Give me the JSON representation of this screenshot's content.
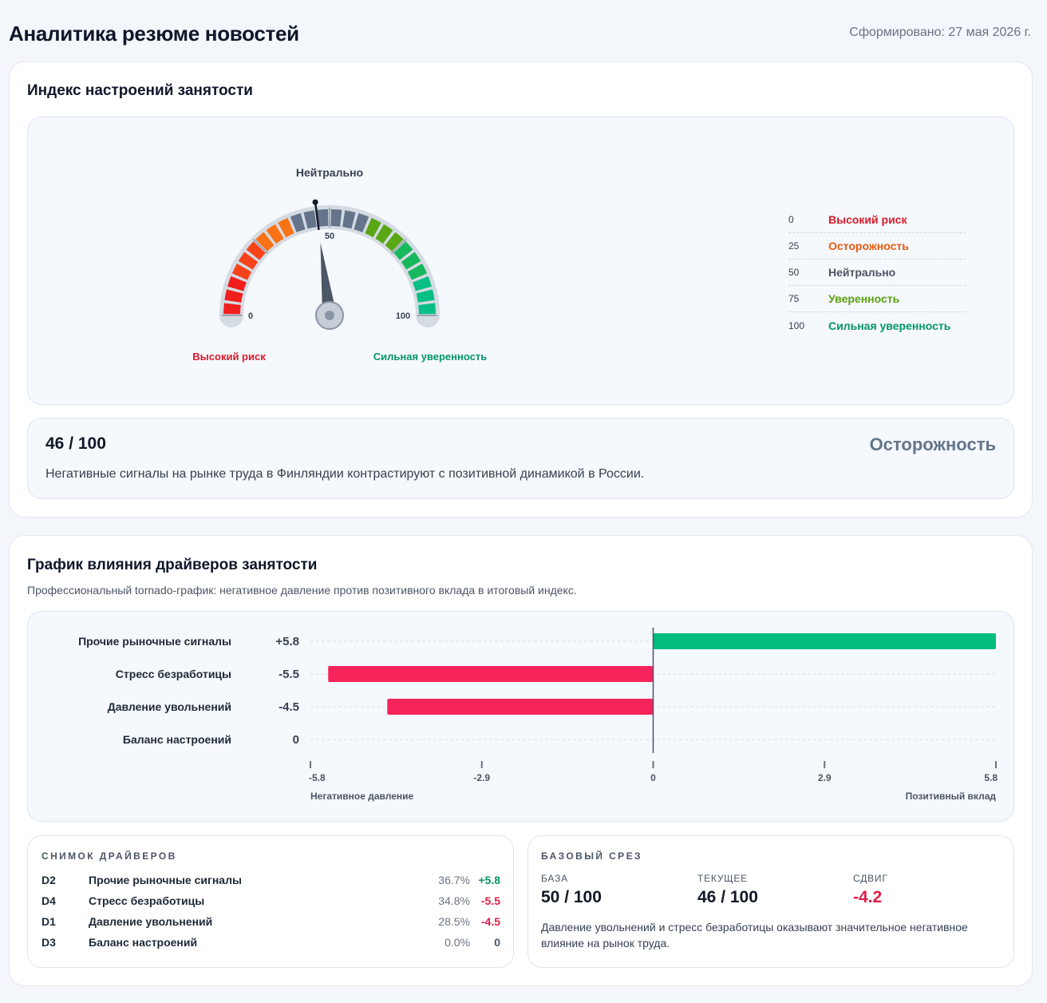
{
  "header": {
    "title": "Аналитика резюме новостей",
    "generated": "Сформировано: 27 мая 2026 г."
  },
  "sentiment": {
    "title": "Индекс настроений занятости",
    "gauge": {
      "value": 46,
      "min": 0,
      "max": 100,
      "top_label": "Нейтрально",
      "tick_0": "0",
      "tick_50": "50",
      "tick_100": "100",
      "left_label": "Высокий риск",
      "right_label": "Сильная уверенность"
    },
    "legend": [
      {
        "value": "0",
        "label": "Высокий риск",
        "color": "#dc1a2b"
      },
      {
        "value": "25",
        "label": "Осторожность",
        "color": "#ea580c"
      },
      {
        "value": "50",
        "label": "Нейтрально",
        "color": "#4b5563"
      },
      {
        "value": "75",
        "label": "Уверенность",
        "color": "#5a9f10"
      },
      {
        "value": "100",
        "label": "Сильная уверенность",
        "color": "#059669"
      }
    ],
    "summary": {
      "score": "46 / 100",
      "state": "Осторожность",
      "text": "Негативные сигналы на рынке труда в Финляндии контрастируют с позитивной динамикой в России."
    }
  },
  "drivers": {
    "title": "График влияния драйверов занятости",
    "subtitle": "Профессиональный tornado-график: негативное давление против позитивного вклада в итоговый индекс.",
    "chart_data": {
      "type": "bar",
      "orientation": "horizontal",
      "categories": [
        "Прочие рыночные сигналы",
        "Стресс безработицы",
        "Давление увольнений",
        "Баланс настроений"
      ],
      "values": [
        5.8,
        -5.5,
        -4.5,
        0
      ],
      "value_labels": [
        "+5.8",
        "-5.5",
        "-4.5",
        "0"
      ],
      "xlim": [
        -5.8,
        5.8
      ],
      "xticks": [
        -5.8,
        -2.9,
        0,
        2.9,
        5.8
      ],
      "xtick_labels": [
        "-5.8",
        "-2.9",
        "0",
        "2.9",
        "5.8"
      ],
      "left_caption": "Негативное давление",
      "right_caption": "Позитивный вклад",
      "positive_color": "#02bd7d",
      "negative_color": "#f7245c",
      "grid": true
    },
    "snapshot": {
      "title": "СНИМОК ДРАЙВЕРОВ",
      "rows": [
        {
          "code": "D2",
          "label": "Прочие рыночные сигналы",
          "pct": "36.7%",
          "delta": "+5.8",
          "color": "#059669"
        },
        {
          "code": "D4",
          "label": "Стресс безработицы",
          "pct": "34.8%",
          "delta": "-5.5",
          "color": "#e11d48"
        },
        {
          "code": "D1",
          "label": "Давление увольнений",
          "pct": "28.5%",
          "delta": "-4.5",
          "color": "#e11d48"
        },
        {
          "code": "D3",
          "label": "Баланс настроений",
          "pct": "0.0%",
          "delta": "0",
          "color": "#4b5563"
        }
      ]
    },
    "baseline": {
      "title": "БАЗОВЫЙ СРЕЗ",
      "base_caption": "БАЗА",
      "base_value": "50 / 100",
      "current_caption": "ТЕКУЩЕЕ",
      "current_value": "46 / 100",
      "shift_caption": "СДВИГ",
      "shift_value": "-4.2",
      "shift_color": "#e11d48",
      "note": "Давление увольнений и стресс безработицы оказывают значительное негативное влияние на рынок труда."
    }
  }
}
